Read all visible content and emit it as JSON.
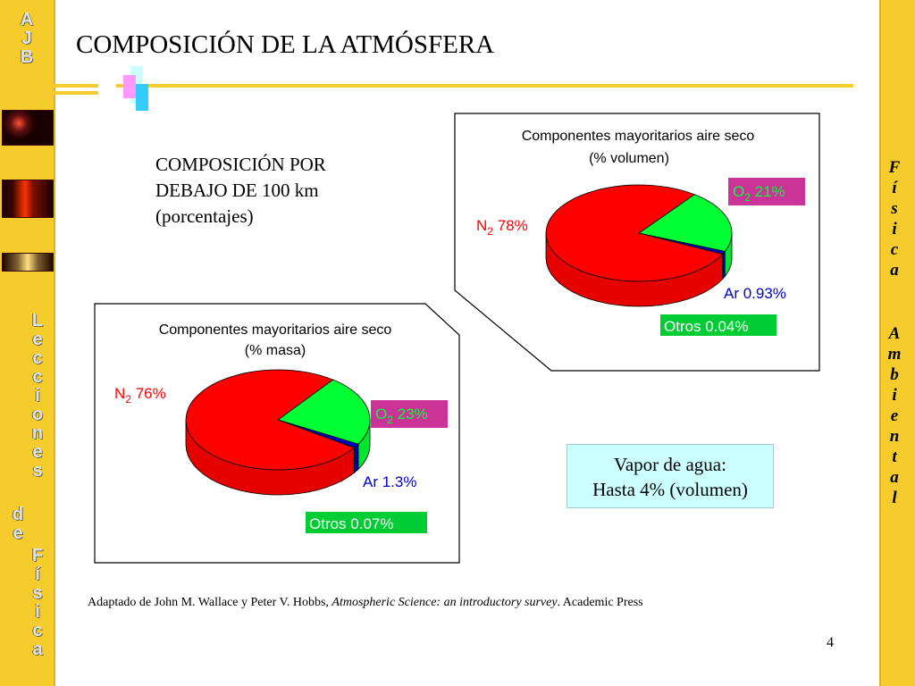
{
  "slide": {
    "title": "COMPOSICIÓN DE LA ATMÓSFERA",
    "subtitle_lines": [
      "COMPOSICIÓN POR",
      "DEBAJO DE 100 km",
      "(porcentajes)"
    ],
    "left_bar_top": [
      "A",
      "J",
      "B"
    ],
    "left_bar_vertical": [
      "L",
      "e",
      "c",
      "c",
      "i",
      "o",
      "n",
      "e",
      "s"
    ],
    "left_bar_de": [
      "d",
      "e"
    ],
    "left_bar_fisica": [
      "F",
      "í",
      "s",
      "i",
      "c",
      "a"
    ],
    "right_bar_fisica": [
      "F",
      "í",
      "s",
      "i",
      "c",
      "a"
    ],
    "right_bar_ambiental": [
      "A",
      "m",
      "b",
      "i",
      "e",
      "n",
      "t",
      "a",
      "l"
    ],
    "vapor_line1": "Vapor de agua:",
    "vapor_line2": "Hasta 4% (volumen)",
    "source_prefix": "Adaptado de John M. Wallace y Peter V. Hobbs, ",
    "source_italic": "Atmospheric Science: an introductory survey",
    "source_suffix": ". Academic Press",
    "page_number": "4"
  },
  "colors": {
    "n2": "#ff0000",
    "o2": "#00ff33",
    "ar": "#0000cc",
    "otros": "#00dd33",
    "o2_label_bg": "#cc3399",
    "otros_label_bg": "#00cc33",
    "n2_text": "#ff0000",
    "ar_text": "#0000cc"
  },
  "chart_data": [
    {
      "type": "pie",
      "title_line1": "Componentes mayoritarios aire seco",
      "title_line2": "(% volumen)",
      "slices": [
        {
          "name": "N2",
          "value": 78,
          "label_main": "N",
          "label_sub": "2",
          "label_value": " 78%"
        },
        {
          "name": "O2",
          "value": 21,
          "label_main": "O",
          "label_sub": "2",
          "label_value": " 21%"
        },
        {
          "name": "Ar",
          "value": 0.93,
          "label_main": "Ar 0.93%",
          "label_sub": "",
          "label_value": ""
        },
        {
          "name": "Otros",
          "value": 0.04,
          "label_main": "Otros 0.04%",
          "label_sub": "",
          "label_value": ""
        }
      ]
    },
    {
      "type": "pie",
      "title_line1": "Componentes mayoritarios aire seco",
      "title_line2": "(% masa)",
      "slices": [
        {
          "name": "N2",
          "value": 76,
          "label_main": "N",
          "label_sub": "2",
          "label_value": " 76%"
        },
        {
          "name": "O2",
          "value": 23,
          "label_main": "O",
          "label_sub": "2",
          "label_value": " 23%"
        },
        {
          "name": "Ar",
          "value": 1.3,
          "label_main": "Ar 1.3%",
          "label_sub": "",
          "label_value": ""
        },
        {
          "name": "Otros",
          "value": 0.07,
          "label_main": "Otros 0.07%",
          "label_sub": "",
          "label_value": ""
        }
      ]
    }
  ]
}
